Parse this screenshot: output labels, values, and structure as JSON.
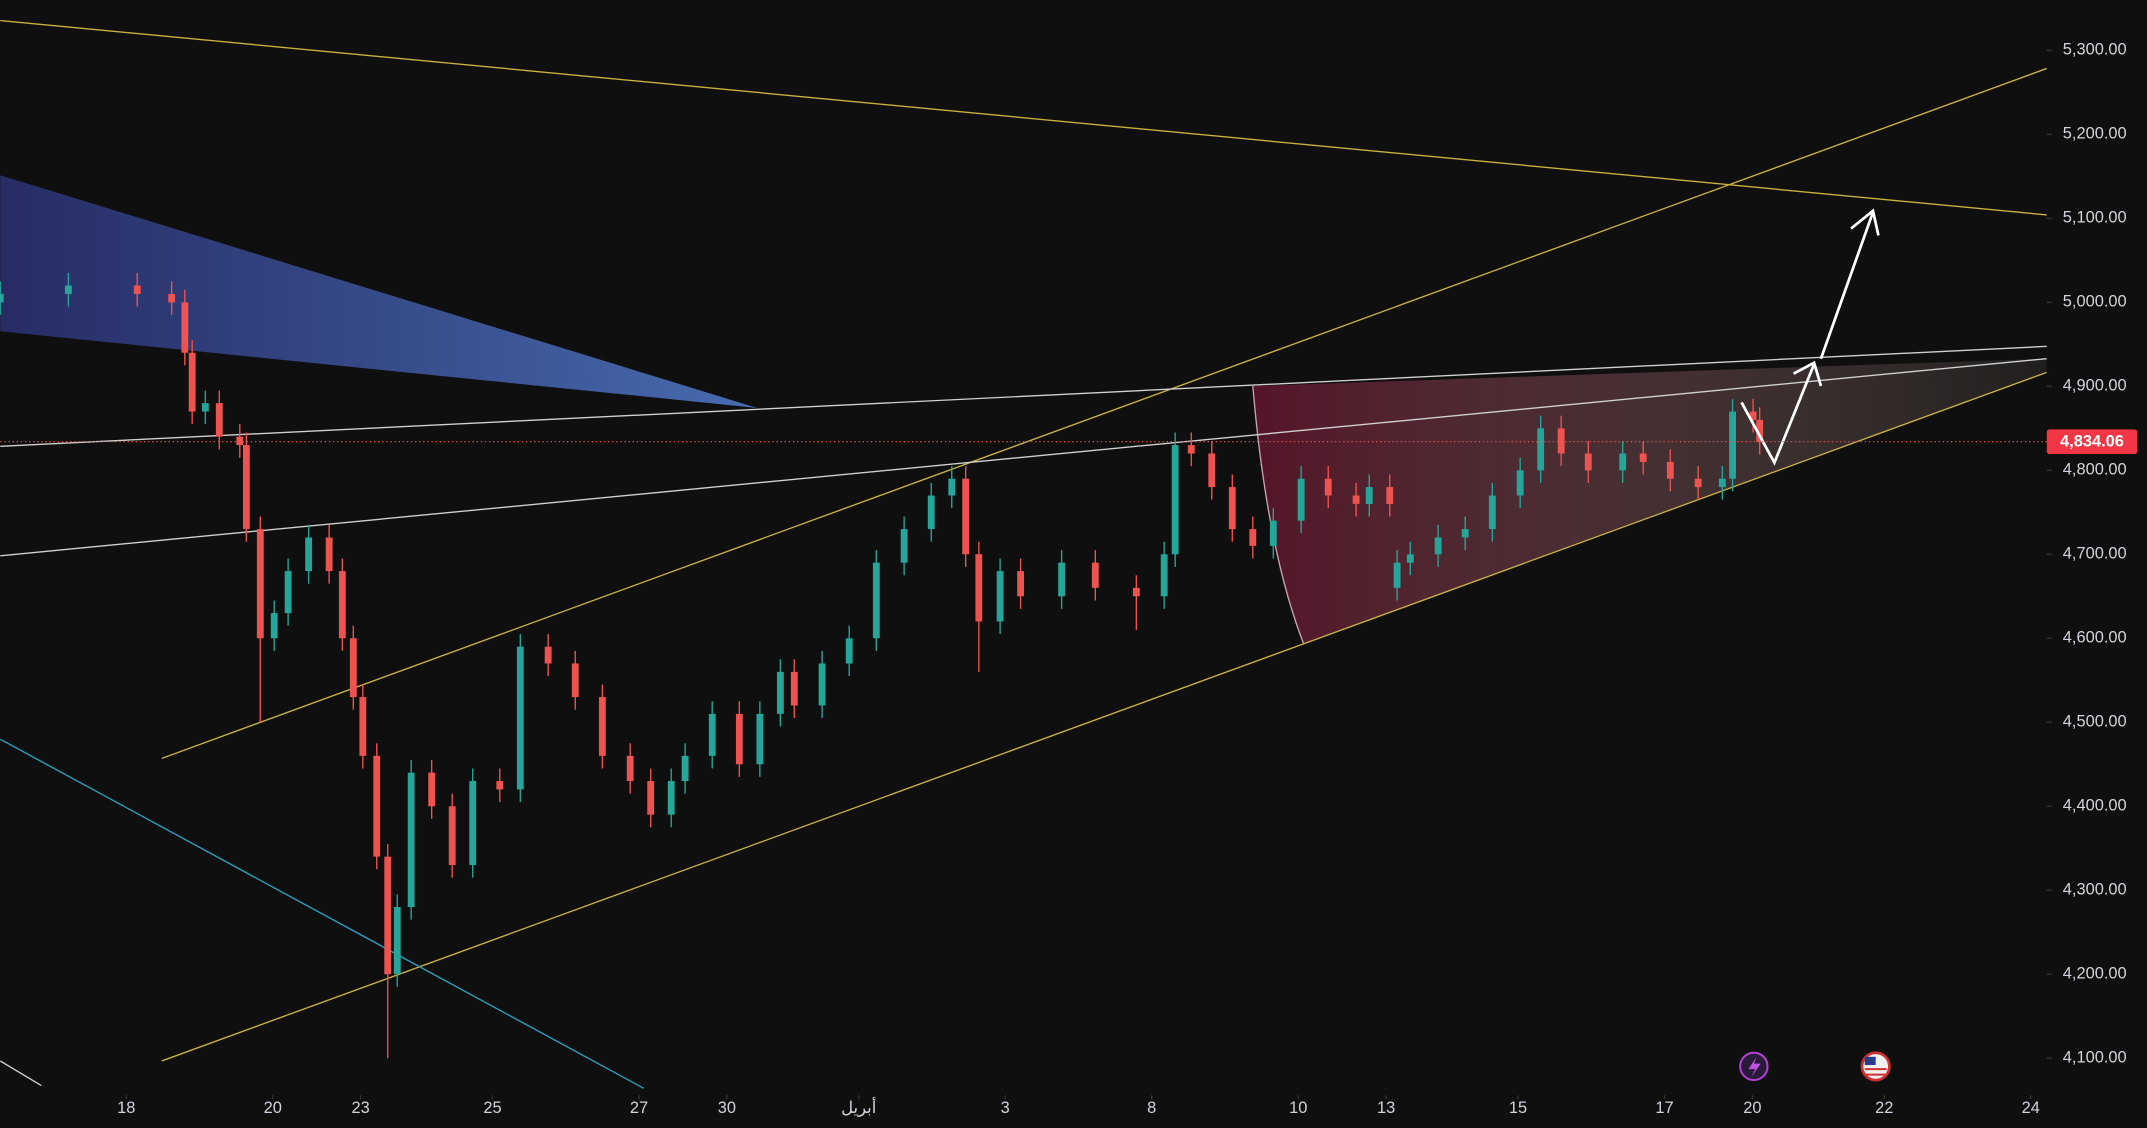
{
  "chart_data": {
    "type": "candlestick",
    "x": [
      -1.72,
      -0.79,
      0.15,
      0.62,
      0.8,
      0.9,
      1.08,
      1.27,
      1.55,
      1.64,
      1.83,
      2.02,
      2.21,
      2.49,
      2.77,
      2.95,
      3.1,
      3.23,
      3.42,
      3.57,
      3.7,
      3.89,
      4.17,
      4.45,
      4.73,
      5.1,
      5.38,
      5.76,
      6.13,
      6.5,
      6.88,
      7.16,
      7.44,
      7.63,
      8.0,
      8.37,
      8.65,
      8.93,
      9.12,
      9.5,
      9.87,
      10.24,
      10.62,
      10.99,
      11.27,
      11.46,
      11.64,
      11.93,
      12.21,
      12.77,
      13.23,
      13.79,
      14.17,
      14.32,
      14.54,
      14.82,
      15.1,
      15.38,
      15.66,
      16.04,
      16.41,
      16.79,
      16.97,
      17.25,
      17.35,
      17.53,
      17.91,
      18.28,
      18.65,
      19.03,
      19.31,
      19.59,
      19.96,
      20.43,
      20.71,
      21.08,
      21.46,
      21.79,
      21.93,
      22.21,
      22.3
    ],
    "open": [
      5000,
      5010,
      5020,
      5010,
      5000,
      4940,
      4870,
      4880,
      4840,
      4830,
      4730,
      4600,
      4630,
      4680,
      4720,
      4680,
      4600,
      4530,
      4460,
      4340,
      4200,
      4280,
      4440,
      4400,
      4330,
      4430,
      4420,
      4590,
      4570,
      4530,
      4460,
      4430,
      4390,
      4430,
      4460,
      4510,
      4450,
      4510,
      4560,
      4520,
      4570,
      4600,
      4690,
      4730,
      4770,
      4790,
      4700,
      4620,
      4680,
      4650,
      4690,
      4660,
      4650,
      4700,
      4830,
      4820,
      4780,
      4730,
      4710,
      4740,
      4790,
      4770,
      4760,
      4780,
      4660,
      4690,
      4700,
      4720,
      4730,
      4770,
      4800,
      4850,
      4820,
      4800,
      4820,
      4810,
      4790,
      4780,
      4790,
      4870,
      4860
    ],
    "high": [
      5025,
      5035,
      5035,
      5025,
      5015,
      4955,
      4895,
      4895,
      4855,
      4845,
      4745,
      4645,
      4695,
      4735,
      4735,
      4695,
      4615,
      4545,
      4475,
      4355,
      4295,
      4455,
      4455,
      4415,
      4445,
      4445,
      4605,
      4605,
      4585,
      4545,
      4475,
      4445,
      4445,
      4475,
      4525,
      4525,
      4525,
      4575,
      4575,
      4585,
      4615,
      4705,
      4745,
      4785,
      4805,
      4805,
      4715,
      4695,
      4695,
      4705,
      4705,
      4675,
      4715,
      4845,
      4845,
      4835,
      4795,
      4745,
      4755,
      4805,
      4805,
      4785,
      4795,
      4795,
      4705,
      4715,
      4735,
      4745,
      4785,
      4815,
      4865,
      4865,
      4835,
      4835,
      4835,
      4825,
      4805,
      4805,
      4885,
      4885,
      4875
    ],
    "low": [
      4985,
      4995,
      4995,
      4985,
      4925,
      4855,
      4855,
      4825,
      4815,
      4715,
      4500,
      4585,
      4615,
      4665,
      4665,
      4585,
      4515,
      4445,
      4325,
      4100,
      4185,
      4265,
      4385,
      4315,
      4315,
      4405,
      4405,
      4555,
      4515,
      4445,
      4415,
      4375,
      4375,
      4415,
      4445,
      4435,
      4435,
      4495,
      4505,
      4505,
      4555,
      4585,
      4675,
      4715,
      4755,
      4685,
      4560,
      4605,
      4635,
      4635,
      4645,
      4610,
      4635,
      4685,
      4805,
      4765,
      4715,
      4695,
      4695,
      4725,
      4755,
      4745,
      4745,
      4745,
      4645,
      4675,
      4685,
      4705,
      4715,
      4755,
      4785,
      4805,
      4785,
      4785,
      4795,
      4775,
      4765,
      4765,
      4775,
      4845,
      4819
    ],
    "close": [
      5010,
      5020,
      5010,
      5000,
      4940,
      4870,
      4880,
      4840,
      4830,
      4730,
      4600,
      4630,
      4680,
      4720,
      4680,
      4600,
      4530,
      4460,
      4340,
      4200,
      4280,
      4440,
      4400,
      4330,
      4430,
      4420,
      4590,
      4570,
      4530,
      4460,
      4430,
      4390,
      4430,
      4460,
      4510,
      4450,
      4510,
      4560,
      4520,
      4570,
      4600,
      4690,
      4730,
      4770,
      4790,
      4700,
      4620,
      4680,
      4650,
      4690,
      4660,
      4650,
      4700,
      4830,
      4820,
      4780,
      4730,
      4710,
      4740,
      4790,
      4770,
      4760,
      4780,
      4760,
      4690,
      4700,
      4720,
      4730,
      4770,
      4800,
      4850,
      4820,
      4800,
      4820,
      4810,
      4790,
      4780,
      4790,
      4870,
      4860,
      4834
    ],
    "colors": {
      "up": "#26a69a",
      "down": "#ef5350"
    },
    "last_price": {
      "value": 4834.06,
      "label": "4,834.06"
    },
    "xlim": [
      -1.72,
      26.22
    ],
    "xticks": [
      {
        "value": 0,
        "label": "18"
      },
      {
        "value": 2,
        "label": "20"
      },
      {
        "value": 3.2,
        "label": "23"
      },
      {
        "value": 5,
        "label": "25"
      },
      {
        "value": 7,
        "label": "27"
      },
      {
        "value": 8.2,
        "label": "30"
      },
      {
        "value": 10,
        "label": "أبريل"
      },
      {
        "value": 12,
        "label": "3"
      },
      {
        "value": 14,
        "label": "8"
      },
      {
        "value": 16,
        "label": "10"
      },
      {
        "value": 17.2,
        "label": "13"
      },
      {
        "value": 19,
        "label": "15"
      },
      {
        "value": 21,
        "label": "17"
      },
      {
        "value": 22.2,
        "label": "20"
      },
      {
        "value": 24,
        "label": "22"
      },
      {
        "value": 26,
        "label": "24"
      }
    ],
    "ylim": [
      4056,
      5360
    ],
    "yticks": [
      {
        "value": 4100,
        "label": "4,100.00"
      },
      {
        "value": 4200,
        "label": "4,200.00"
      },
      {
        "value": 4300,
        "label": "4,300.00"
      },
      {
        "value": 4400,
        "label": "4,400.00"
      },
      {
        "value": 4500,
        "label": "4,500.00"
      },
      {
        "value": 4600,
        "label": "4,600.00"
      },
      {
        "value": 4700,
        "label": "4,700.00"
      },
      {
        "value": 4800,
        "label": "4,800.00"
      },
      {
        "value": 4900,
        "label": "4,900.00"
      },
      {
        "value": 5000,
        "label": "5,000.00"
      },
      {
        "value": 5100,
        "label": "5,100.00"
      },
      {
        "value": 5200,
        "label": "5,200.00"
      },
      {
        "value": 5300,
        "label": "5,300.00"
      }
    ]
  }
}
